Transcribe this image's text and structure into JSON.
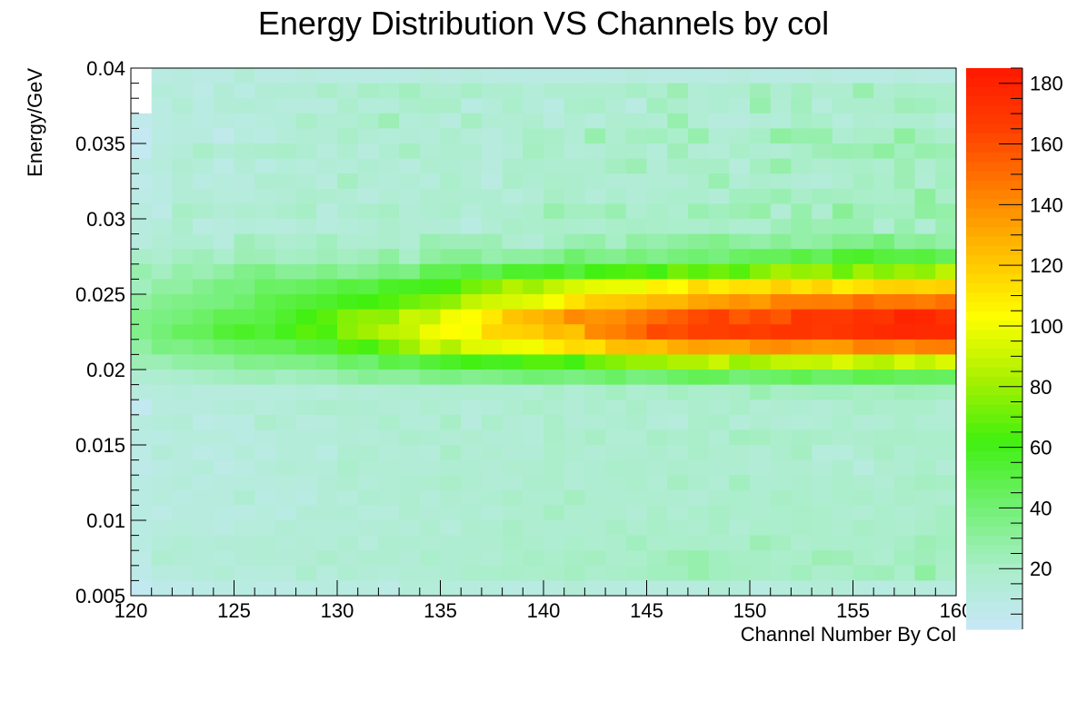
{
  "chart_data": {
    "type": "heatmap",
    "title": "Energy Distribution VS Channels by col",
    "xlabel": "Channel Number By Col",
    "ylabel": "Energy/GeV",
    "xlim": [
      120,
      160
    ],
    "ylim": [
      0.005,
      0.04
    ],
    "x_bins": 40,
    "y_bins": 35,
    "x_ticks": [
      120,
      125,
      130,
      135,
      140,
      145,
      150,
      155,
      160
    ],
    "x_tick_labels": [
      "120",
      "125",
      "130",
      "135",
      "140",
      "145",
      "150",
      "155",
      "160"
    ],
    "y_ticks": [
      0.005,
      0.01,
      0.015,
      0.02,
      0.025,
      0.03,
      0.035,
      0.04
    ],
    "y_tick_labels": [
      "0.005",
      "0.01",
      "0.015",
      "0.02",
      "0.025",
      "0.03",
      "0.035",
      "0.04"
    ],
    "z_range": [
      0,
      185
    ],
    "z_ticks": [
      20,
      40,
      60,
      80,
      100,
      120,
      140,
      160,
      180
    ],
    "z_tick_labels": [
      "20",
      "40",
      "60",
      "80",
      "100",
      "120",
      "140",
      "160",
      "180"
    ],
    "colormap": [
      "#c8e8f8",
      "#a8eec8",
      "#70f070",
      "#40f010",
      "#a8f000",
      "#ffff00",
      "#ffc000",
      "#ff8000",
      "#ff4000",
      "#ff1800"
    ],
    "values": [
      [
        0,
        9,
        11,
        9,
        9,
        14,
        9,
        9,
        11,
        9,
        10,
        9,
        10,
        9,
        11,
        9,
        11,
        9,
        10,
        9,
        9,
        9,
        10,
        9,
        11,
        9,
        9,
        10,
        9,
        11,
        9,
        10,
        9,
        11,
        9,
        10,
        9,
        11,
        9,
        10
      ],
      [
        0,
        13,
        12,
        8,
        14,
        10,
        14,
        15,
        14,
        20,
        14,
        21,
        19,
        23,
        17,
        16,
        21,
        17,
        17,
        13,
        17,
        17,
        17,
        17,
        21,
        17,
        25,
        15,
        16,
        17,
        24,
        16,
        22,
        17,
        17,
        27,
        16,
        20,
        19,
        18
      ],
      [
        0,
        9,
        15,
        10,
        14,
        15,
        13,
        11,
        11,
        11,
        18,
        13,
        13,
        18,
        20,
        20,
        10,
        13,
        19,
        13,
        10,
        19,
        20,
        14,
        9,
        23,
        18,
        14,
        16,
        13,
        27,
        15,
        23,
        12,
        18,
        18,
        18,
        24,
        23,
        20
      ],
      [
        5,
        9,
        12,
        10,
        11,
        10,
        12,
        13,
        20,
        15,
        15,
        19,
        25,
        13,
        15,
        11,
        22,
        15,
        15,
        17,
        11,
        15,
        12,
        17,
        17,
        14,
        27,
        15,
        11,
        11,
        14,
        13,
        21,
        19,
        12,
        16,
        15,
        16,
        17,
        11
      ],
      [
        2,
        10,
        11,
        11,
        5,
        12,
        10,
        13,
        15,
        14,
        20,
        15,
        13,
        14,
        13,
        18,
        13,
        11,
        15,
        21,
        20,
        15,
        27,
        17,
        22,
        23,
        19,
        27,
        15,
        17,
        21,
        30,
        27,
        27,
        16,
        20,
        20,
        30,
        22,
        18
      ],
      [
        3,
        11,
        13,
        20,
        14,
        17,
        18,
        20,
        16,
        12,
        17,
        11,
        16,
        22,
        15,
        17,
        17,
        11,
        13,
        22,
        19,
        13,
        14,
        18,
        18,
        13,
        24,
        14,
        13,
        20,
        16,
        15,
        20,
        24,
        26,
        25,
        30,
        23,
        27,
        25
      ],
      [
        9,
        12,
        16,
        13,
        8,
        14,
        10,
        13,
        12,
        14,
        13,
        16,
        14,
        11,
        17,
        16,
        14,
        11,
        18,
        18,
        16,
        17,
        17,
        22,
        25,
        14,
        20,
        21,
        21,
        12,
        22,
        28,
        20,
        17,
        18,
        20,
        17,
        25,
        17,
        22
      ],
      [
        6,
        9,
        14,
        10,
        12,
        11,
        17,
        16,
        15,
        11,
        22,
        15,
        13,
        15,
        12,
        19,
        15,
        9,
        20,
        16,
        19,
        18,
        16,
        14,
        14,
        15,
        14,
        18,
        26,
        15,
        18,
        17,
        14,
        13,
        17,
        22,
        19,
        25,
        15,
        23
      ],
      [
        8,
        10,
        14,
        14,
        12,
        12,
        13,
        14,
        18,
        17,
        14,
        11,
        15,
        13,
        17,
        17,
        16,
        16,
        12,
        14,
        21,
        18,
        13,
        18,
        14,
        17,
        19,
        18,
        14,
        23,
        23,
        26,
        20,
        23,
        22,
        20,
        19,
        20,
        31,
        20
      ],
      [
        11,
        8,
        21,
        18,
        14,
        17,
        15,
        18,
        21,
        11,
        16,
        19,
        21,
        14,
        16,
        19,
        13,
        17,
        16,
        19,
        27,
        22,
        22,
        26,
        17,
        20,
        17,
        26,
        23,
        25,
        28,
        15,
        27,
        17,
        32,
        24,
        22,
        22,
        30,
        28
      ],
      [
        11,
        13,
        18,
        9,
        11,
        13,
        12,
        11,
        14,
        12,
        13,
        14,
        18,
        15,
        14,
        14,
        10,
        15,
        20,
        18,
        20,
        18,
        16,
        20,
        21,
        20,
        19,
        18,
        21,
        17,
        16,
        24,
        28,
        25,
        26,
        26,
        15,
        26,
        15,
        26
      ],
      [
        11,
        15,
        16,
        16,
        11,
        24,
        21,
        17,
        18,
        23,
        16,
        17,
        18,
        15,
        26,
        24,
        24,
        25,
        17,
        14,
        21,
        26,
        28,
        21,
        29,
        27,
        30,
        32,
        35,
        30,
        28,
        32,
        28,
        30,
        35,
        34,
        40,
        30,
        32,
        28
      ],
      [
        20,
        17,
        22,
        24,
        19,
        25,
        24,
        21,
        22,
        24,
        22,
        24,
        30,
        20,
        29,
        33,
        33,
        27,
        30,
        30,
        33,
        42,
        36,
        34,
        39,
        35,
        39,
        41,
        38,
        44,
        46,
        46,
        51,
        46,
        55,
        57,
        52,
        50,
        52,
        46
      ],
      [
        27,
        22,
        28,
        25,
        29,
        35,
        37,
        32,
        32,
        36,
        31,
        34,
        38,
        36,
        48,
        48,
        52,
        48,
        56,
        55,
        58,
        52,
        61,
        64,
        66,
        61,
        72,
        67,
        71,
        66,
        75,
        82,
        78,
        80,
        70,
        81,
        75,
        80,
        77,
        87
      ],
      [
        23,
        29,
        29,
        34,
        38,
        37,
        44,
        43,
        45,
        48,
        52,
        50,
        57,
        58,
        60,
        63,
        72,
        76,
        85,
        80,
        88,
        93,
        97,
        98,
        98,
        108,
        104,
        115,
        109,
        113,
        112,
        118,
        112,
        117,
        109,
        113,
        117,
        118,
        116,
        118
      ],
      [
        29,
        34,
        36,
        37,
        38,
        42,
        48,
        51,
        53,
        56,
        60,
        62,
        65,
        70,
        74,
        77,
        88,
        92,
        93,
        96,
        101,
        112,
        119,
        120,
        122,
        126,
        126,
        132,
        134,
        138,
        135,
        144,
        144,
        145,
        144,
        150,
        146,
        147,
        145,
        149
      ],
      [
        35,
        37,
        39,
        43,
        48,
        48,
        50,
        55,
        61,
        67,
        75,
        78,
        77,
        90,
        88,
        100,
        103,
        110,
        122,
        126,
        130,
        141,
        137,
        139,
        145,
        150,
        155,
        161,
        165,
        156,
        162,
        157,
        170,
        169,
        168,
        172,
        170,
        179,
        178,
        171
      ],
      [
        35,
        40,
        45,
        46,
        53,
        57,
        53,
        59,
        67,
        64,
        76,
        81,
        87,
        89,
        99,
        103,
        101,
        116,
        117,
        119,
        125,
        122,
        141,
        144,
        150,
        162,
        160,
        165,
        165,
        168,
        166,
        170,
        170,
        168,
        170,
        173,
        175,
        177,
        175,
        176
      ],
      [
        29,
        37,
        36,
        39,
        43,
        45,
        47,
        47,
        52,
        53,
        66,
        63,
        72,
        80,
        91,
        84,
        95,
        96,
        99,
        100,
        109,
        115,
        113,
        124,
        125,
        123,
        130,
        134,
        132,
        131,
        138,
        140,
        137,
        135,
        136,
        144,
        143,
        140,
        144,
        145
      ],
      [
        25,
        25,
        29,
        30,
        30,
        35,
        34,
        36,
        36,
        38,
        44,
        41,
        50,
        48,
        53,
        57,
        61,
        58,
        59,
        66,
        66,
        61,
        71,
        75,
        79,
        79,
        84,
        84,
        90,
        79,
        82,
        88,
        89,
        88,
        94,
        88,
        85,
        93,
        88,
        94
      ],
      [
        16,
        17,
        18,
        21,
        23,
        24,
        25,
        22,
        24,
        25,
        29,
        33,
        31,
        31,
        36,
        37,
        34,
        36,
        38,
        41,
        40,
        37,
        40,
        44,
        38,
        40,
        44,
        47,
        46,
        40,
        42,
        44,
        48,
        43,
        44,
        49,
        48,
        45,
        46,
        45
      ],
      [
        11,
        12,
        13,
        11,
        11,
        11,
        12,
        12,
        13,
        12,
        15,
        13,
        15,
        16,
        15,
        16,
        17,
        16,
        16,
        15,
        20,
        15,
        18,
        22,
        17,
        18,
        22,
        19,
        18,
        20,
        26,
        21,
        22,
        23,
        23,
        21,
        22,
        24,
        23,
        22
      ],
      [
        4,
        11,
        11,
        11,
        13,
        14,
        12,
        13,
        16,
        18,
        17,
        16,
        14,
        13,
        17,
        15,
        12,
        13,
        17,
        20,
        17,
        14,
        18,
        15,
        20,
        14,
        15,
        18,
        16,
        20,
        15,
        17,
        16,
        14,
        17,
        21,
        18,
        19,
        19,
        14
      ],
      [
        11,
        13,
        14,
        8,
        9,
        10,
        18,
        15,
        11,
        12,
        15,
        14,
        19,
        13,
        13,
        21,
        11,
        19,
        14,
        13,
        20,
        14,
        15,
        16,
        18,
        13,
        12,
        19,
        20,
        13,
        17,
        14,
        13,
        15,
        19,
        14,
        15,
        19,
        15,
        15
      ],
      [
        10,
        10,
        12,
        12,
        12,
        10,
        11,
        13,
        13,
        13,
        14,
        13,
        14,
        18,
        16,
        14,
        17,
        14,
        15,
        13,
        20,
        17,
        21,
        15,
        15,
        21,
        18,
        20,
        15,
        23,
        22,
        19,
        21,
        20,
        17,
        18,
        20,
        20,
        19,
        19
      ],
      [
        8,
        14,
        12,
        8,
        10,
        13,
        9,
        13,
        13,
        10,
        16,
        17,
        13,
        14,
        13,
        21,
        14,
        17,
        14,
        14,
        19,
        17,
        14,
        16,
        16,
        18,
        15,
        20,
        17,
        17,
        14,
        18,
        22,
        12,
        12,
        17,
        21,
        16,
        18,
        18
      ],
      [
        7,
        9,
        11,
        13,
        8,
        9,
        13,
        15,
        13,
        13,
        19,
        15,
        15,
        14,
        14,
        16,
        16,
        14,
        17,
        17,
        19,
        15,
        16,
        19,
        18,
        16,
        18,
        17,
        16,
        16,
        14,
        17,
        17,
        14,
        18,
        11,
        17,
        16,
        20,
        14
      ],
      [
        10,
        11,
        13,
        9,
        11,
        12,
        11,
        12,
        11,
        14,
        17,
        13,
        15,
        16,
        17,
        20,
        17,
        14,
        14,
        18,
        18,
        14,
        16,
        17,
        19,
        15,
        22,
        18,
        15,
        23,
        16,
        16,
        18,
        16,
        19,
        17,
        15,
        20,
        22,
        21
      ],
      [
        9,
        12,
        10,
        11,
        11,
        16,
        10,
        11,
        10,
        14,
        12,
        16,
        15,
        17,
        13,
        17,
        15,
        17,
        20,
        16,
        17,
        22,
        17,
        16,
        17,
        17,
        16,
        14,
        18,
        19,
        17,
        21,
        19,
        16,
        19,
        20,
        16,
        20,
        18,
        17
      ],
      [
        10,
        8,
        11,
        11,
        10,
        9,
        12,
        10,
        14,
        14,
        15,
        12,
        12,
        17,
        14,
        15,
        16,
        13,
        16,
        17,
        22,
        17,
        16,
        17,
        14,
        20,
        15,
        19,
        21,
        18,
        17,
        19,
        20,
        19,
        16,
        15,
        19,
        16,
        18,
        22
      ],
      [
        10,
        11,
        12,
        11,
        9,
        12,
        12,
        15,
        13,
        13,
        13,
        14,
        15,
        13,
        17,
        12,
        17,
        16,
        21,
        17,
        16,
        16,
        17,
        21,
        17,
        20,
        18,
        17,
        21,
        15,
        19,
        18,
        20,
        19,
        17,
        21,
        18,
        17,
        20,
        22
      ],
      [
        10,
        13,
        15,
        13,
        14,
        14,
        15,
        13,
        14,
        13,
        16,
        12,
        17,
        16,
        15,
        16,
        16,
        17,
        20,
        18,
        16,
        19,
        17,
        18,
        23,
        18,
        19,
        20,
        18,
        18,
        25,
        22,
        17,
        19,
        18,
        19,
        18,
        21,
        25,
        23
      ],
      [
        8,
        17,
        14,
        13,
        12,
        14,
        15,
        14,
        14,
        18,
        14,
        17,
        17,
        14,
        19,
        16,
        17,
        15,
        19,
        21,
        19,
        21,
        22,
        18,
        19,
        22,
        25,
        27,
        23,
        21,
        21,
        19,
        20,
        25,
        24,
        20,
        17,
        23,
        24,
        21
      ],
      [
        7,
        11,
        11,
        13,
        15,
        11,
        12,
        12,
        18,
        12,
        16,
        14,
        13,
        15,
        15,
        16,
        19,
        19,
        20,
        19,
        20,
        22,
        18,
        20,
        21,
        23,
        23,
        27,
        23,
        22,
        21,
        20,
        23,
        18,
        20,
        23,
        24,
        19,
        30,
        20
      ],
      [
        4,
        7,
        6,
        8,
        9,
        10,
        8,
        8,
        10,
        11,
        10,
        11,
        8,
        13,
        13,
        12,
        11,
        12,
        10,
        10,
        11,
        14,
        11,
        11,
        10,
        11,
        11,
        11,
        15,
        13,
        10,
        12,
        13,
        14,
        13,
        11,
        10,
        12,
        11,
        11
      ]
    ]
  }
}
